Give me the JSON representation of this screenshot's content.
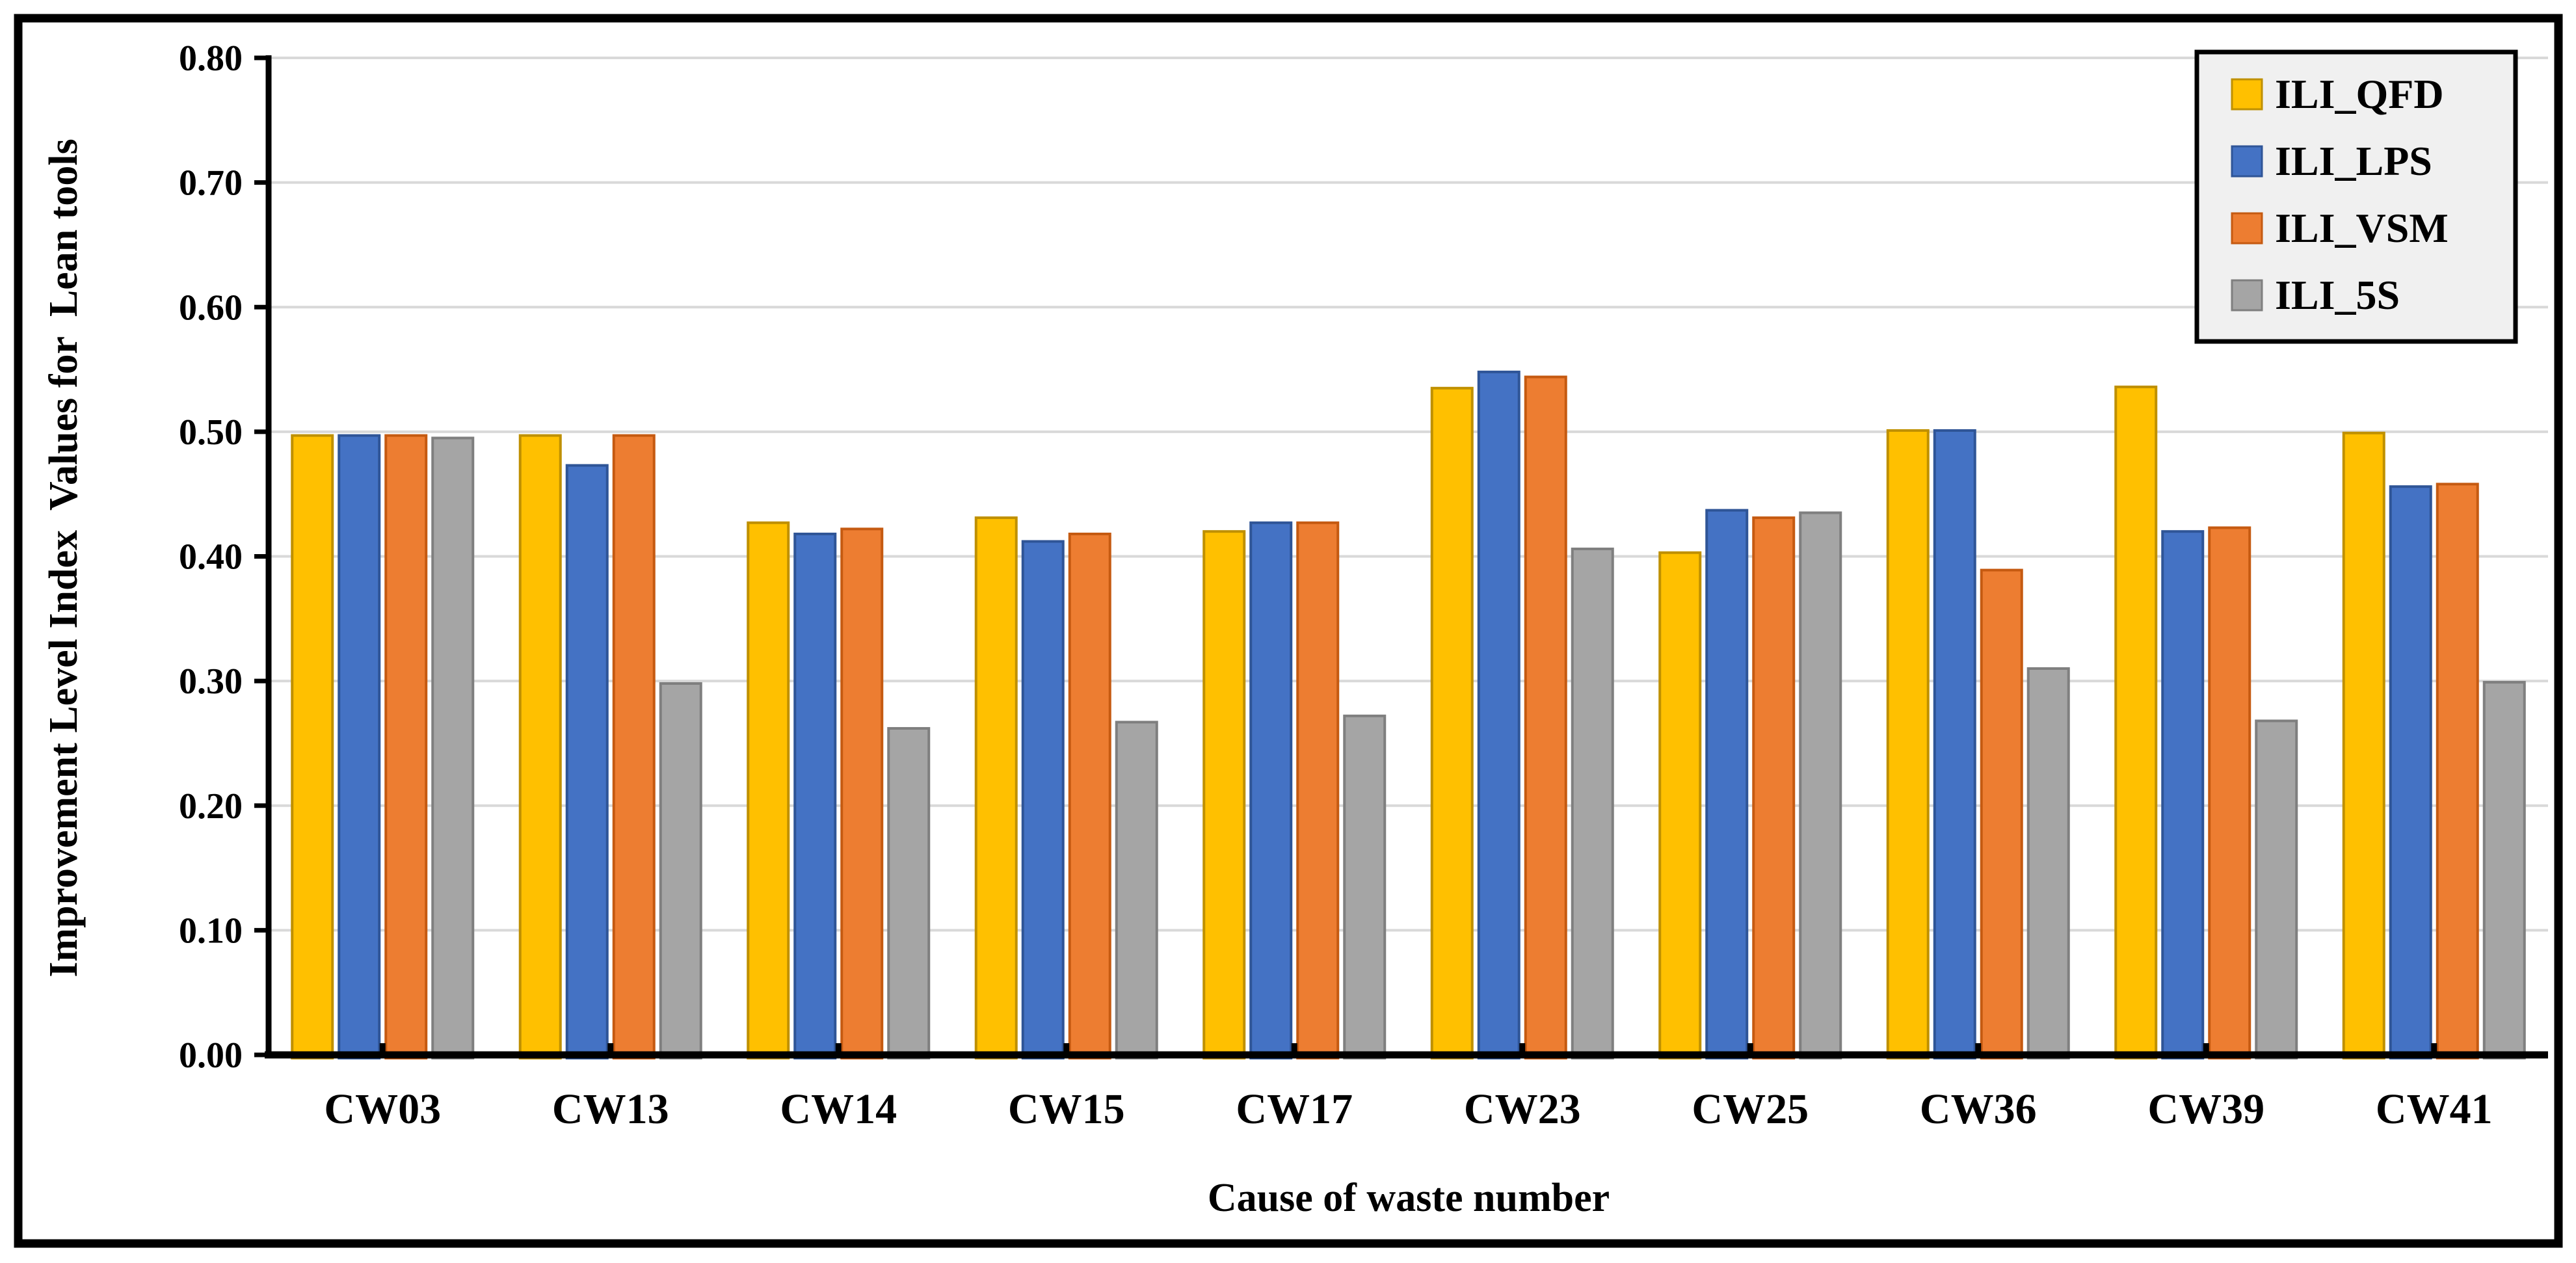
{
  "figure": {
    "background_color": "#FFFFFF",
    "border_color": "#000000"
  },
  "chart_data": {
    "type": "bar",
    "title": "",
    "xlabel": "Cause of waste number",
    "ylabel": "Improvement Level Index  Values for  Lean tools",
    "categories": [
      "CW03",
      "CW13",
      "CW14",
      "CW15",
      "CW17",
      "CW23",
      "CW25",
      "CW36",
      "CW39",
      "CW41"
    ],
    "series": [
      {
        "name": "ILI_QFD",
        "color": "#FFC000",
        "border_color": "#BF9000",
        "values": [
          0.497,
          0.497,
          0.427,
          0.431,
          0.42,
          0.535,
          0.403,
          0.501,
          0.536,
          0.499
        ]
      },
      {
        "name": "ILI_LPS",
        "color": "#4472C4",
        "border_color": "#2F5597",
        "values": [
          0.497,
          0.473,
          0.418,
          0.412,
          0.427,
          0.548,
          0.437,
          0.501,
          0.42,
          0.456
        ]
      },
      {
        "name": "ILI_VSM",
        "color": "#ED7D31",
        "border_color": "#C55A11",
        "values": [
          0.497,
          0.497,
          0.422,
          0.418,
          0.427,
          0.544,
          0.431,
          0.389,
          0.423,
          0.458
        ]
      },
      {
        "name": "ILI_5S",
        "color": "#A5A5A5",
        "border_color": "#7F7F7F",
        "values": [
          0.495,
          0.298,
          0.262,
          0.267,
          0.272,
          0.406,
          0.435,
          0.31,
          0.268,
          0.299
        ]
      }
    ],
    "ylim": [
      0.0,
      0.8
    ],
    "ytick_step": 0.1,
    "ytick_labels": [
      "0.00",
      "0.10",
      "0.20",
      "0.30",
      "0.40",
      "0.50",
      "0.60",
      "0.70",
      "0.80"
    ],
    "grid": true,
    "gridline_color": "#D9D9D9",
    "axis_color": "#000000",
    "legend_position": "top-right",
    "legend_background": "#F0F0F0",
    "legend_border_color": "#000000"
  }
}
